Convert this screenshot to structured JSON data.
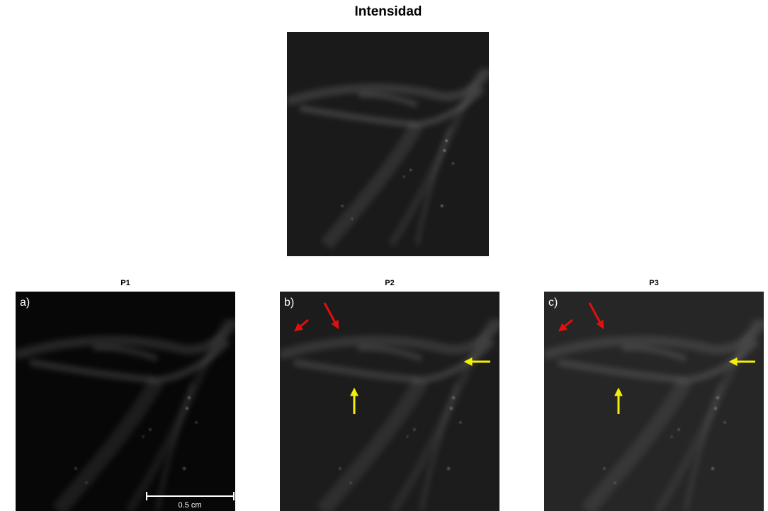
{
  "title": "Intensidad",
  "panels": [
    {
      "title": "P1",
      "label": "a)"
    },
    {
      "title": "P2",
      "label": "b)"
    },
    {
      "title": "P3",
      "label": "c)"
    }
  ],
  "scale_bar": "0.5 cm"
}
